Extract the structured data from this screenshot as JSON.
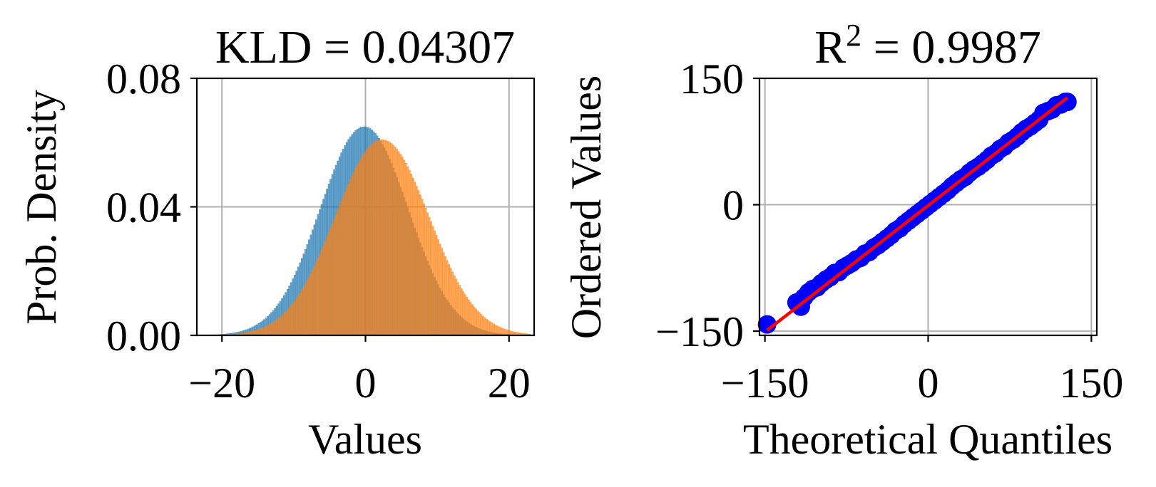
{
  "chart_data": [
    {
      "type": "histogram",
      "title": "KLD = 0.04307",
      "xlabel": "Values",
      "ylabel": "Prob. Density",
      "xlim": [
        -23.5,
        23.5
      ],
      "ylim": [
        0,
        0.08
      ],
      "xticks": [
        -20,
        0,
        20
      ],
      "xtick_labels": [
        "−20",
        "0",
        "20"
      ],
      "yticks": [
        0,
        0.04,
        0.08
      ],
      "ytick_labels": [
        "0.00",
        "0.04",
        "0.08"
      ],
      "grid": true,
      "series": [
        {
          "color": "#1f77b4",
          "alpha": 0.7,
          "mean": -0.2,
          "std": 6.15,
          "peak": 0.065
        },
        {
          "color": "#ff7f0e",
          "alpha": 0.7,
          "mean": 2.3,
          "std": 6.55,
          "peak": 0.061
        }
      ]
    },
    {
      "type": "scatter",
      "title": "R² = 0.9987",
      "title_main": "R",
      "title_sup": "2",
      "title_rest": " = 0.9987",
      "xlabel": "Theoretical Quantiles",
      "ylabel": "Ordered Values",
      "xlim": [
        -155,
        155
      ],
      "ylim": [
        -155,
        150
      ],
      "xticks": [
        -150,
        0,
        150
      ],
      "xtick_labels": [
        "−150",
        "0",
        "150"
      ],
      "yticks": [
        -150,
        0,
        150
      ],
      "yticks_grid": [
        -150,
        0
      ],
      "ytick_labels": [
        "−150",
        "0",
        "150"
      ],
      "grid": true,
      "points_color": "#0000ff",
      "line_color": "#ff0000",
      "x_range": [
        -148,
        128
      ],
      "slope": 1.0,
      "intercept": -1.0,
      "points": [
        [
          -148,
          -142
        ],
        [
          -121,
          -116
        ],
        [
          -117,
          -121
        ],
        [
          -114,
          -110
        ],
        [
          -110,
          -104
        ],
        [
          -106,
          -100
        ],
        [
          -102,
          -98
        ],
        [
          -98,
          -93
        ],
        [
          -94,
          -89
        ],
        [
          -90,
          -86
        ],
        [
          -86,
          -81
        ],
        [
          -82,
          -80
        ],
        [
          -78,
          -75
        ],
        [
          -74,
          -72
        ],
        [
          -70,
          -69
        ],
        [
          -66,
          -65
        ],
        [
          -62,
          -63
        ],
        [
          -58,
          -58
        ],
        [
          -54,
          -56
        ],
        [
          -50,
          -51
        ],
        [
          -46,
          -48
        ],
        [
          -42,
          -44
        ],
        [
          -38,
          -40
        ],
        [
          -34,
          -36
        ],
        [
          -30,
          -31
        ],
        [
          -26,
          -28
        ],
        [
          -22,
          -23
        ],
        [
          -18,
          -19
        ],
        [
          -14,
          -15
        ],
        [
          -10,
          -11
        ],
        [
          -6,
          -7
        ],
        [
          -2,
          -3
        ],
        [
          2,
          1
        ],
        [
          6,
          5
        ],
        [
          10,
          9
        ],
        [
          14,
          13
        ],
        [
          18,
          17
        ],
        [
          22,
          22
        ],
        [
          26,
          26
        ],
        [
          30,
          30
        ],
        [
          34,
          33
        ],
        [
          38,
          38
        ],
        [
          42,
          42
        ],
        [
          46,
          45
        ],
        [
          50,
          49
        ],
        [
          54,
          53
        ],
        [
          58,
          58
        ],
        [
          62,
          61
        ],
        [
          66,
          66
        ],
        [
          70,
          69
        ],
        [
          74,
          74
        ],
        [
          78,
          77
        ],
        [
          82,
          81
        ],
        [
          86,
          86
        ],
        [
          90,
          90
        ],
        [
          94,
          93
        ],
        [
          98,
          97
        ],
        [
          102,
          101
        ],
        [
          106,
          109
        ],
        [
          110,
          111
        ],
        [
          114,
          113
        ],
        [
          118,
          118
        ],
        [
          122,
          119
        ],
        [
          126,
          122
        ],
        [
          128,
          122
        ]
      ]
    }
  ]
}
